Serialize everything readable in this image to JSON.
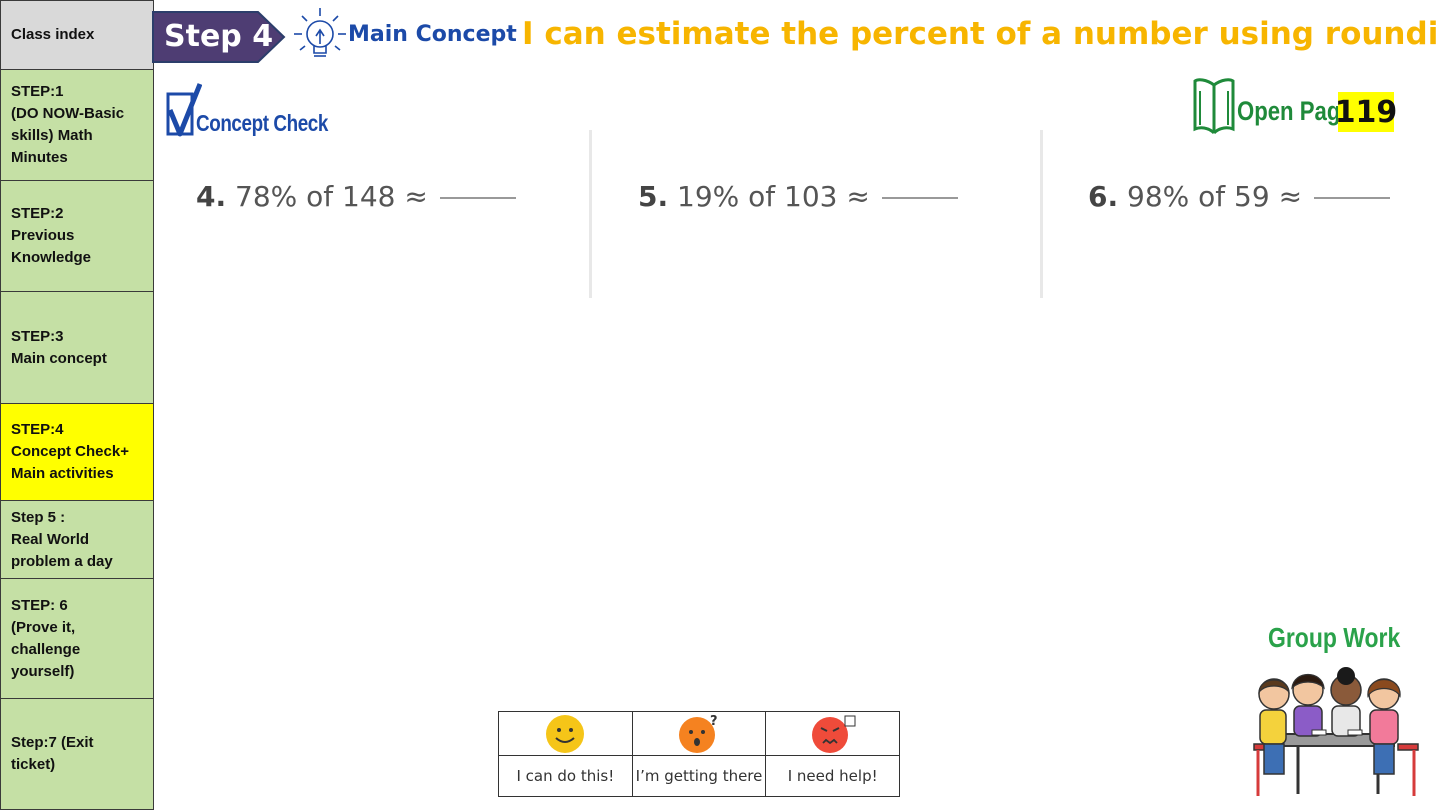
{
  "sidebar": {
    "items": [
      {
        "label": "Class index"
      },
      {
        "label": "STEP:1\n(DO NOW-Basic\nskills) Math\nMinutes"
      },
      {
        "label": "STEP:2\nPrevious\nKnowledge"
      },
      {
        "label": "STEP:3\nMain concept"
      },
      {
        "label": "STEP:4\nConcept Check+\nMain activities"
      },
      {
        "label": "Step 5 :\nReal World\nproblem a day"
      },
      {
        "label": "STEP: 6\n(Prove it,\nchallenge\nyourself)"
      },
      {
        "label": "Step:7 (Exit\nticket)"
      }
    ],
    "active_index": 4
  },
  "header": {
    "step_label": "Step 4",
    "main_concept_label": "Main Concept",
    "objective": "I can estimate the percent of a number using rounding."
  },
  "concept_check": {
    "label": "Concept Check",
    "icon": "checkmark-icon"
  },
  "open_page": {
    "label": "Open Page",
    "page": "119",
    "icon": "book-icon"
  },
  "problems": [
    {
      "number": "4.",
      "text": "78% of 148 ≈"
    },
    {
      "number": "5.",
      "text": "19% of 103 ≈"
    },
    {
      "number": "6.",
      "text": "98% of 59 ≈"
    }
  ],
  "group_work": {
    "label": "Group Work"
  },
  "self_assessment": [
    {
      "label": "I can do this!",
      "color": "#f5c518"
    },
    {
      "label": "I’m getting there",
      "color": "#f58220"
    },
    {
      "label": "I need help!",
      "color": "#ef4b3a"
    }
  ],
  "colors": {
    "sidebar_bg": "#c5e0a5",
    "sidebar_active": "#ffff00",
    "step_badge": "#4e3d73",
    "objective": "#f7b500",
    "concept_blue": "#1c4aa8",
    "book_green": "#1f8a3a"
  }
}
